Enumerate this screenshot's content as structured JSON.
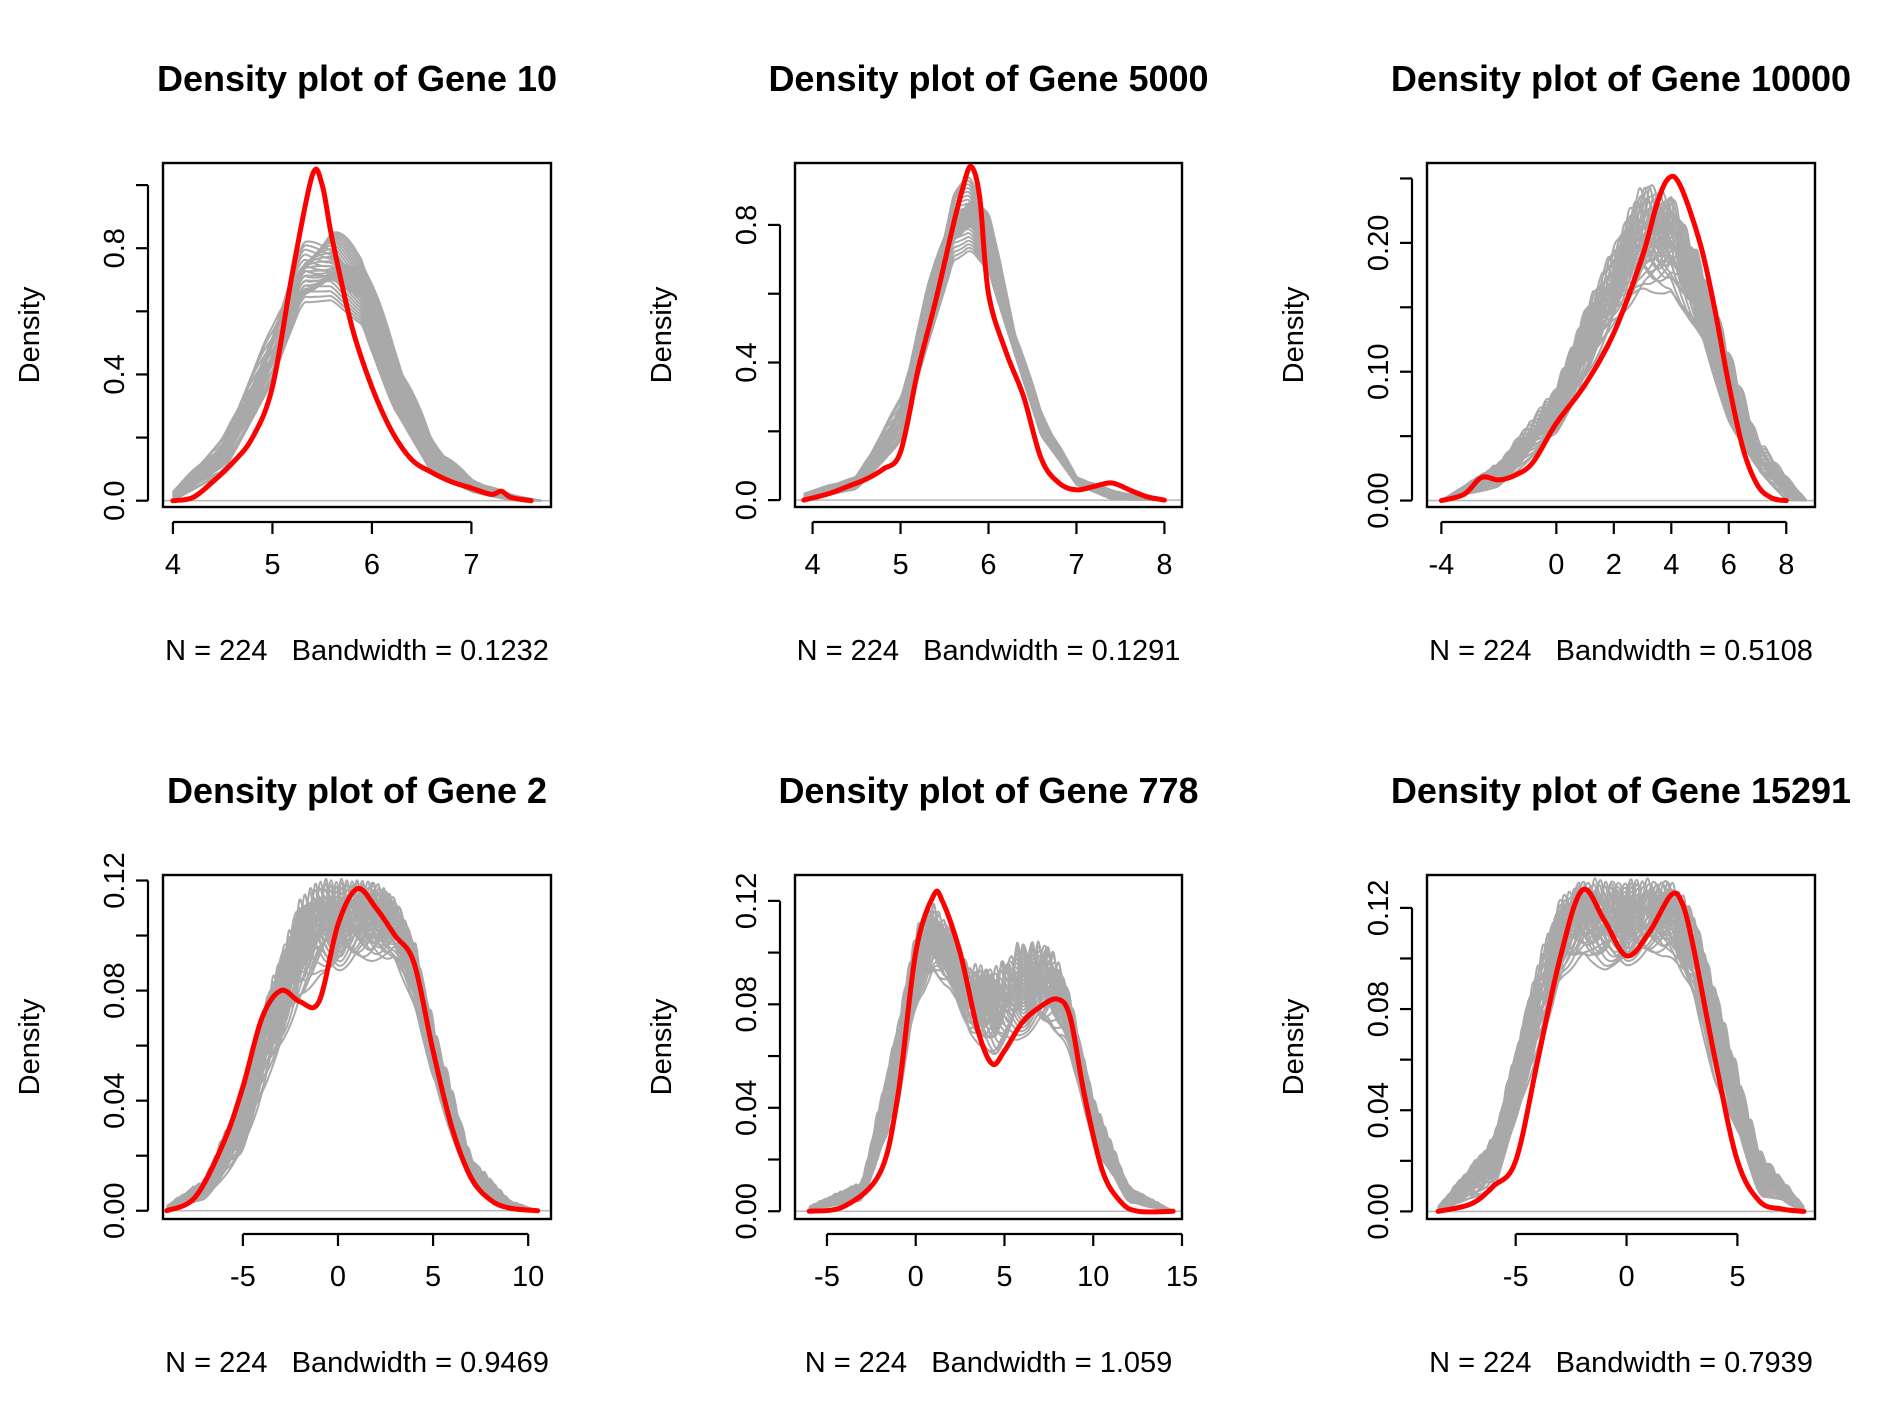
{
  "figure": {
    "colors": {
      "background": "#ffffff",
      "sample_lines": "#a9a9a9",
      "highlight_line": "#ff0000",
      "axis": "#000000",
      "zero_line": "#b8b8b8"
    }
  },
  "chart_data": [
    {
      "type": "line",
      "title": "Density plot of Gene 10",
      "xlabel": "N = 224   Bandwidth = 0.1232",
      "ylabel": "Density",
      "xlim": [
        3.9,
        7.8
      ],
      "ylim": [
        -0.02,
        1.07
      ],
      "xticks": [
        4,
        5,
        6,
        7
      ],
      "yticks": [
        0.0,
        0.2,
        0.4,
        0.6,
        0.8,
        1.0
      ],
      "yticklabels": [
        "0.0",
        "",
        "0.4",
        "",
        "0.8",
        ""
      ],
      "grey_band": {
        "count": 40,
        "x": [
          4.0,
          4.5,
          5.0,
          5.3,
          5.6,
          5.9,
          6.2,
          6.6,
          7.0,
          7.4,
          7.7
        ],
        "low": [
          0.0,
          0.08,
          0.35,
          0.6,
          0.62,
          0.55,
          0.3,
          0.08,
          0.02,
          0.0,
          0.0
        ],
        "high": [
          0.03,
          0.2,
          0.56,
          0.82,
          0.87,
          0.8,
          0.52,
          0.2,
          0.07,
          0.02,
          0.0
        ]
      },
      "series": [
        {
          "color": "red",
          "x": [
            4.0,
            4.2,
            4.4,
            4.6,
            4.8,
            5.0,
            5.2,
            5.4,
            5.5,
            5.6,
            5.8,
            6.0,
            6.2,
            6.4,
            6.6,
            6.8,
            7.0,
            7.2,
            7.3,
            7.4,
            7.6
          ],
          "y": [
            0.0,
            0.01,
            0.06,
            0.12,
            0.2,
            0.36,
            0.72,
            1.03,
            1.0,
            0.83,
            0.55,
            0.36,
            0.22,
            0.13,
            0.09,
            0.06,
            0.04,
            0.02,
            0.03,
            0.01,
            0.0
          ]
        }
      ]
    },
    {
      "type": "line",
      "title": "Density plot of Gene 5000",
      "xlabel": "N = 224   Bandwidth = 0.1291",
      "ylabel": "Density",
      "xlim": [
        3.8,
        8.2
      ],
      "ylim": [
        -0.02,
        0.98
      ],
      "xticks": [
        4,
        5,
        6,
        7,
        8
      ],
      "yticks": [
        0.0,
        0.2,
        0.4,
        0.6,
        0.8
      ],
      "yticklabels": [
        "0.0",
        "",
        "0.4",
        "",
        "0.8"
      ],
      "grey_band": {
        "count": 40,
        "x": [
          3.9,
          4.5,
          5.0,
          5.3,
          5.6,
          5.8,
          6.0,
          6.3,
          6.6,
          7.0,
          7.4,
          8.0
        ],
        "low": [
          0.0,
          0.03,
          0.15,
          0.42,
          0.68,
          0.72,
          0.66,
          0.42,
          0.18,
          0.04,
          0.0,
          0.0
        ],
        "high": [
          0.02,
          0.07,
          0.3,
          0.62,
          0.9,
          0.95,
          0.85,
          0.5,
          0.26,
          0.07,
          0.03,
          0.0
        ]
      },
      "series": [
        {
          "color": "red",
          "x": [
            3.9,
            4.2,
            4.4,
            4.6,
            4.8,
            5.0,
            5.2,
            5.4,
            5.6,
            5.7,
            5.8,
            5.9,
            6.0,
            6.2,
            6.4,
            6.6,
            6.8,
            7.0,
            7.2,
            7.4,
            7.6,
            7.8,
            8.0
          ],
          "y": [
            0.0,
            0.02,
            0.04,
            0.06,
            0.09,
            0.14,
            0.38,
            0.58,
            0.8,
            0.9,
            0.97,
            0.88,
            0.6,
            0.43,
            0.3,
            0.12,
            0.05,
            0.03,
            0.04,
            0.05,
            0.03,
            0.01,
            0.0
          ]
        }
      ]
    },
    {
      "type": "line",
      "title": "Density plot of Gene 10000",
      "xlabel": "N = 224   Bandwidth = 0.5108",
      "ylabel": "Density",
      "xlim": [
        -4.5,
        9.0
      ],
      "ylim": [
        -0.005,
        0.262
      ],
      "xticks": [
        -4,
        0,
        2,
        4,
        6,
        8
      ],
      "yticks": [
        0.0,
        0.05,
        0.1,
        0.15,
        0.2,
        0.25
      ],
      "yticklabels": [
        "0.00",
        "",
        "0.10",
        "",
        "0.20",
        ""
      ],
      "grey_band": {
        "count": 40,
        "x": [
          -4.0,
          -2.0,
          0.0,
          1.0,
          2.0,
          3.0,
          4.0,
          5.0,
          6.0,
          7.0,
          8.0,
          8.7
        ],
        "low": [
          0.0,
          0.01,
          0.05,
          0.09,
          0.13,
          0.16,
          0.16,
          0.12,
          0.06,
          0.02,
          0.0,
          0.0
        ],
        "high": [
          0.0,
          0.03,
          0.09,
          0.15,
          0.2,
          0.25,
          0.24,
          0.19,
          0.12,
          0.05,
          0.02,
          0.0
        ]
      },
      "series": [
        {
          "color": "red",
          "x": [
            -4.0,
            -3.2,
            -2.6,
            -2.0,
            -1.4,
            -0.8,
            0.0,
            1.0,
            2.0,
            3.0,
            3.5,
            3.9,
            4.3,
            5.0,
            5.5,
            6.0,
            6.5,
            7.0,
            7.5,
            8.0
          ],
          "y": [
            0.0,
            0.005,
            0.018,
            0.016,
            0.02,
            0.03,
            0.06,
            0.09,
            0.13,
            0.19,
            0.23,
            0.25,
            0.245,
            0.2,
            0.15,
            0.09,
            0.04,
            0.012,
            0.002,
            0.0
          ]
        }
      ]
    },
    {
      "type": "line",
      "title": "Density plot of Gene 2",
      "xlabel": "N = 224   Bandwidth = 0.9469",
      "ylabel": "Density",
      "xlim": [
        -9.2,
        11.2
      ],
      "ylim": [
        -0.003,
        0.122
      ],
      "xticks": [
        -5,
        0,
        5,
        10
      ],
      "yticks": [
        0.0,
        0.02,
        0.04,
        0.06,
        0.08,
        0.1,
        0.12
      ],
      "yticklabels": [
        "0.00",
        "",
        "0.04",
        "",
        "0.08",
        "",
        "0.12"
      ],
      "grey_band": {
        "count": 40,
        "x": [
          -9.0,
          -7.0,
          -5.0,
          -3.5,
          -2.0,
          -1.0,
          0.0,
          1.0,
          2.0,
          3.0,
          4.0,
          5.0,
          7.0,
          9.0,
          10.5
        ],
        "low": [
          0.0,
          0.004,
          0.02,
          0.05,
          0.075,
          0.085,
          0.085,
          0.09,
          0.09,
          0.09,
          0.075,
          0.045,
          0.008,
          0.0,
          0.0
        ],
        "high": [
          0.002,
          0.012,
          0.045,
          0.085,
          0.115,
          0.121,
          0.121,
          0.121,
          0.121,
          0.115,
          0.1,
          0.07,
          0.02,
          0.004,
          0.0
        ]
      },
      "series": [
        {
          "color": "red",
          "x": [
            -9.0,
            -7.5,
            -6.0,
            -5.0,
            -4.0,
            -3.0,
            -2.0,
            -1.0,
            0.0,
            1.0,
            2.0,
            3.0,
            4.0,
            5.0,
            6.0,
            7.0,
            8.0,
            9.0,
            10.5
          ],
          "y": [
            0.0,
            0.005,
            0.025,
            0.045,
            0.07,
            0.08,
            0.076,
            0.076,
            0.104,
            0.117,
            0.11,
            0.1,
            0.09,
            0.058,
            0.03,
            0.012,
            0.004,
            0.001,
            0.0
          ]
        }
      ]
    },
    {
      "type": "line",
      "title": "Density plot of Gene 778",
      "xlabel": "N = 224   Bandwidth = 1.059",
      "ylabel": "Density",
      "xlim": [
        -6.8,
        15.0
      ],
      "ylim": [
        -0.003,
        0.13
      ],
      "xticks": [
        -5,
        0,
        5,
        10,
        15
      ],
      "yticks": [
        0.0,
        0.02,
        0.04,
        0.06,
        0.08,
        0.1,
        0.12
      ],
      "yticklabels": [
        "0.00",
        "",
        "0.04",
        "",
        "0.08",
        "",
        "0.12"
      ],
      "grey_band": {
        "count": 40,
        "x": [
          -6.0,
          -3.0,
          -1.0,
          0.0,
          1.0,
          2.0,
          3.0,
          4.5,
          6.0,
          7.5,
          8.5,
          10.0,
          12.0,
          14.5
        ],
        "low": [
          0.0,
          0.004,
          0.04,
          0.078,
          0.09,
          0.085,
          0.068,
          0.058,
          0.066,
          0.07,
          0.065,
          0.025,
          0.003,
          0.0
        ],
        "high": [
          0.002,
          0.012,
          0.075,
          0.11,
          0.12,
          0.11,
          0.096,
          0.096,
          0.106,
          0.105,
          0.09,
          0.045,
          0.01,
          0.0
        ]
      },
      "series": [
        {
          "color": "red",
          "x": [
            -6.0,
            -4.0,
            -2.0,
            -1.0,
            0.0,
            1.0,
            1.5,
            2.5,
            3.5,
            4.3,
            5.0,
            6.0,
            7.0,
            8.0,
            8.7,
            9.5,
            10.5,
            11.5,
            12.5,
            14.5
          ],
          "y": [
            0.0,
            0.002,
            0.015,
            0.045,
            0.1,
            0.122,
            0.12,
            0.1,
            0.07,
            0.057,
            0.062,
            0.073,
            0.079,
            0.082,
            0.075,
            0.045,
            0.016,
            0.004,
            0.0,
            0.0
          ]
        }
      ]
    },
    {
      "type": "line",
      "title": "Density plot of Gene 15291",
      "xlabel": "N = 224   Bandwidth = 0.7939",
      "ylabel": "Density",
      "xlim": [
        -9.0,
        8.5
      ],
      "ylim": [
        -0.003,
        0.133
      ],
      "xticks": [
        -5,
        0,
        5
      ],
      "yticks": [
        0.0,
        0.02,
        0.04,
        0.06,
        0.08,
        0.1,
        0.12
      ],
      "yticklabels": [
        "0.00",
        "",
        "0.04",
        "",
        "0.08",
        "",
        "0.12"
      ],
      "grey_band": {
        "count": 40,
        "x": [
          -8.5,
          -6.0,
          -4.0,
          -3.0,
          -2.0,
          -1.0,
          0.0,
          1.0,
          2.0,
          3.0,
          4.0,
          6.0,
          8.0
        ],
        "low": [
          0.0,
          0.008,
          0.06,
          0.09,
          0.1,
          0.095,
          0.095,
          0.1,
          0.1,
          0.085,
          0.05,
          0.006,
          0.0
        ],
        "high": [
          0.002,
          0.03,
          0.1,
          0.125,
          0.132,
          0.132,
          0.132,
          0.132,
          0.132,
          0.12,
          0.09,
          0.025,
          0.002
        ]
      },
      "series": [
        {
          "color": "red",
          "x": [
            -8.5,
            -7.0,
            -6.0,
            -5.0,
            -4.0,
            -3.0,
            -2.0,
            -1.0,
            0.0,
            1.0,
            2.0,
            2.5,
            3.0,
            4.0,
            5.0,
            6.0,
            7.0,
            8.0
          ],
          "y": [
            0.0,
            0.003,
            0.01,
            0.02,
            0.06,
            0.1,
            0.127,
            0.115,
            0.101,
            0.11,
            0.125,
            0.122,
            0.105,
            0.06,
            0.02,
            0.004,
            0.001,
            0.0
          ]
        }
      ]
    }
  ]
}
